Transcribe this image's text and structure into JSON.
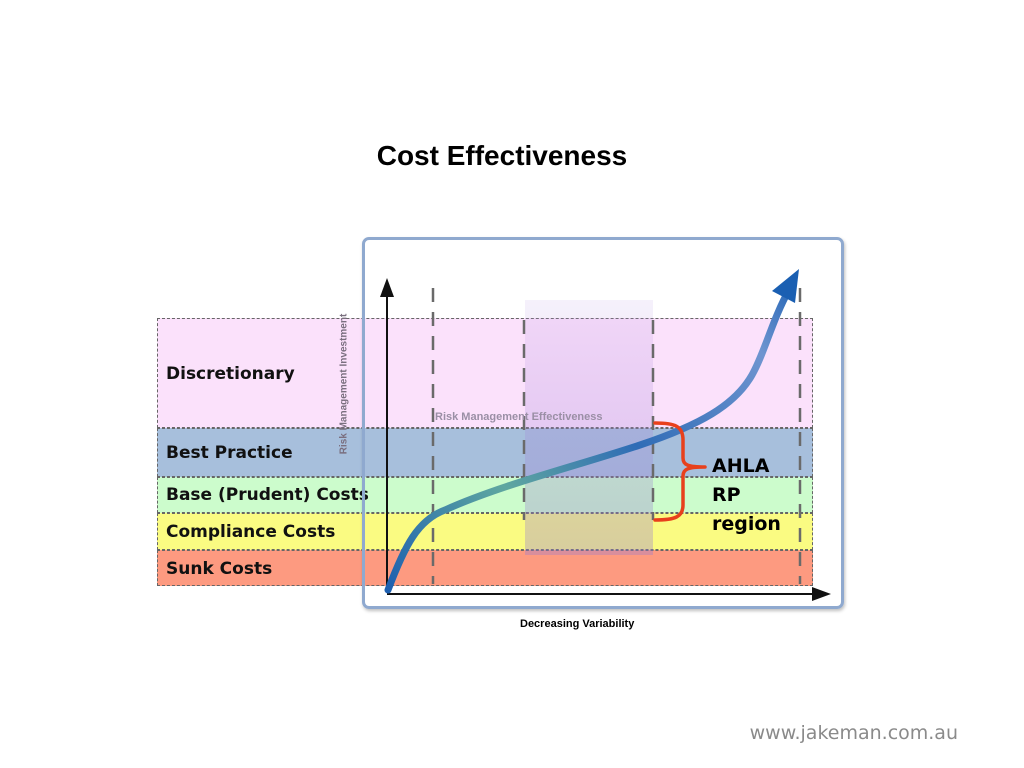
{
  "title": "Cost Effectiveness",
  "bands": [
    {
      "label": "Discretionary",
      "color": "#fbe1fb"
    },
    {
      "label": "Best Practice",
      "color": "#a7bfdc"
    },
    {
      "label": "Base (Prudent) Costs",
      "color": "#ccfccc"
    },
    {
      "label": "Compliance Costs",
      "color": "#fafb82"
    },
    {
      "label": "Sunk Costs",
      "color": "#fd9a80"
    }
  ],
  "axes": {
    "y_label": "Risk Management Investment",
    "x_label": "Decreasing Variability"
  },
  "curve_label": "Risk Management Effectiveness",
  "region_label": "AHLA RP region",
  "footer": "www.jakeman.com.au",
  "colors": {
    "curve": "#2a6cb8",
    "brace": "#e8401c",
    "frame": "#8fa9cf"
  }
}
